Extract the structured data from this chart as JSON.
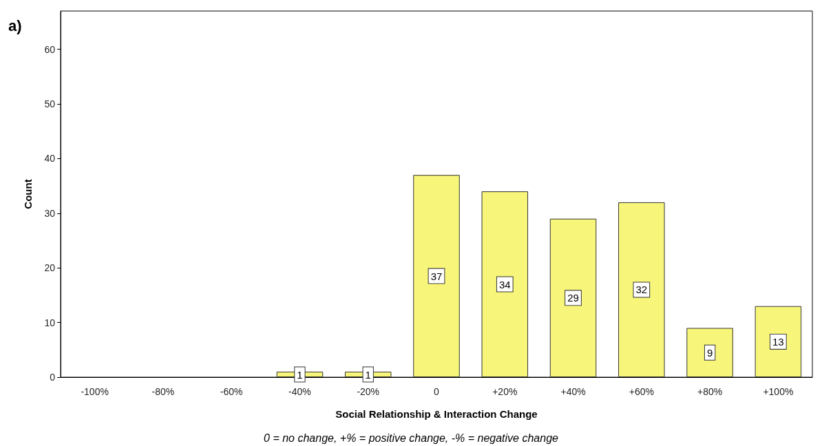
{
  "chart_data": {
    "type": "bar",
    "xlabel": "Social Relationship & Interaction Change",
    "ylabel": "Count",
    "annotations": [
      "a)",
      "0 = no change, +% = positive change, -% = negative change"
    ],
    "categories": [
      "-100%",
      "-80%",
      "-60%",
      "-40%",
      "-20%",
      "0",
      "+20%",
      "+40%",
      "+60%",
      "+80%",
      "+100%"
    ],
    "values": [
      0,
      0,
      0,
      1,
      1,
      37,
      34,
      29,
      32,
      9,
      13
    ],
    "value_labels": [
      null,
      null,
      null,
      "1",
      "1",
      "37",
      "34",
      "29",
      "32",
      "9",
      "13"
    ],
    "color": "#f8f67a",
    "ylim": [
      0,
      67
    ],
    "yticks": [
      0,
      10,
      20,
      30,
      40,
      50,
      60
    ],
    "grid": false
  }
}
